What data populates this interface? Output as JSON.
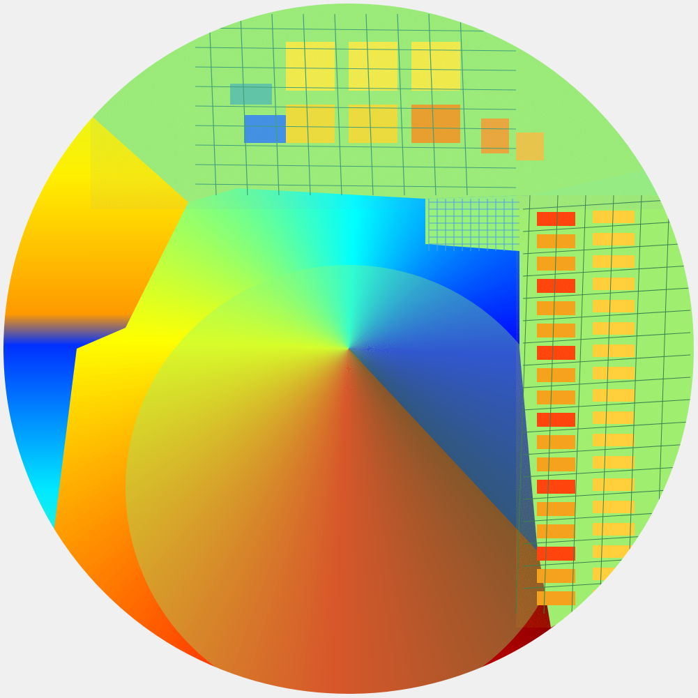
{
  "image": {
    "kind": "fisheye-orientation-map",
    "description_tags": [
      "ground-plane",
      "building-facade",
      "windows",
      "sky"
    ],
    "colormap": "jet",
    "palette": {
      "background": "#f0f0f0",
      "neutral": "#8dfa78",
      "jet": [
        "#00008f",
        "#0000ff",
        "#0080ff",
        "#00ffff",
        "#80ff80",
        "#ffff00",
        "#ff8000",
        "#ff0000",
        "#800000"
      ]
    }
  }
}
